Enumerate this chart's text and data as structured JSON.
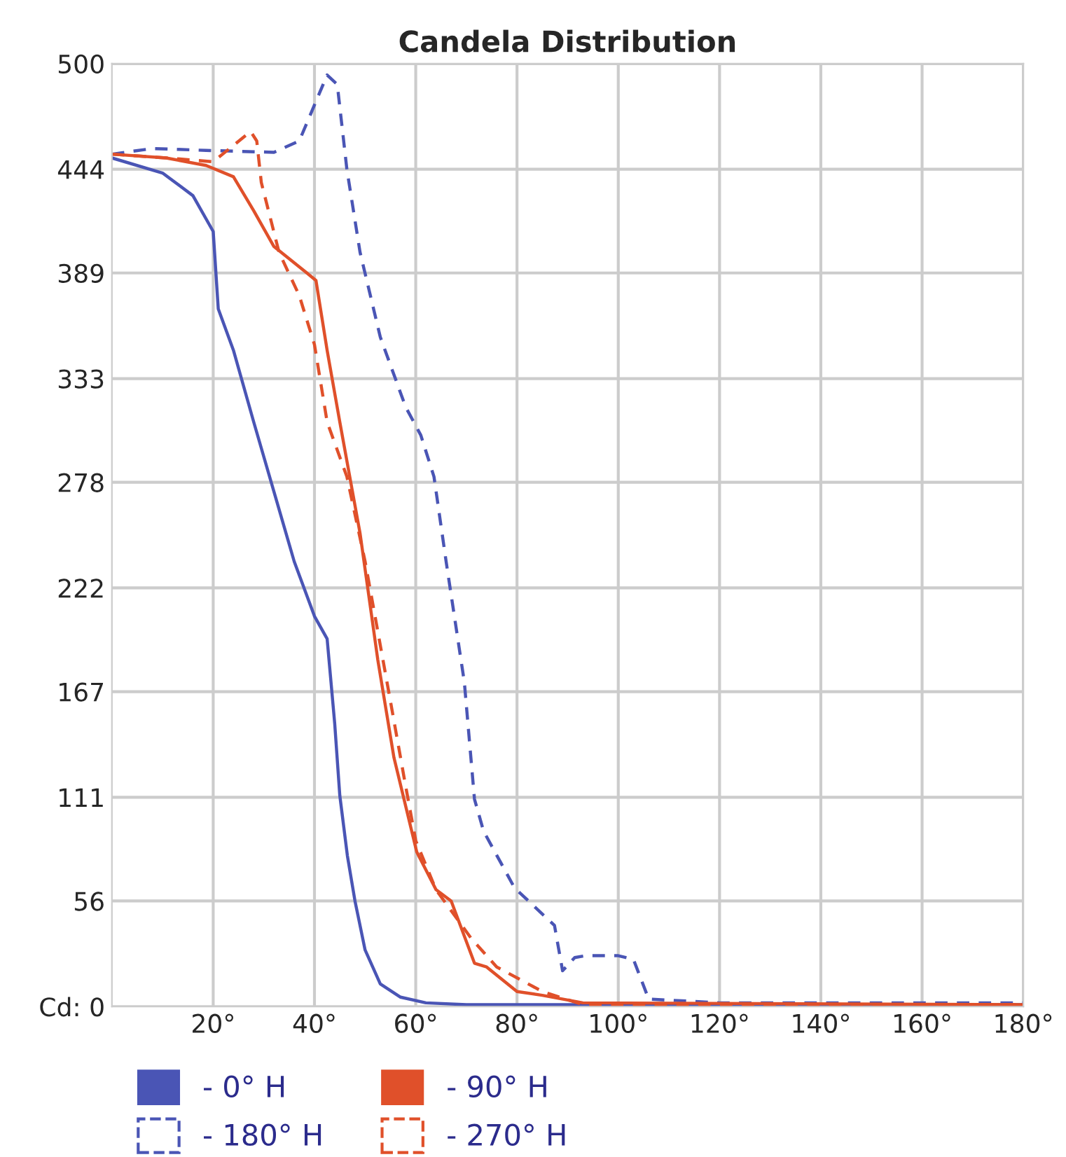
{
  "chart_data": {
    "type": "line",
    "title": "Candela Distribution",
    "xlim": [
      0,
      180
    ],
    "ylim": [
      0,
      500
    ],
    "xticks": [
      {
        "value": 20,
        "label": "20°"
      },
      {
        "value": 40,
        "label": "40°"
      },
      {
        "value": 60,
        "label": "60°"
      },
      {
        "value": 80,
        "label": "80°"
      },
      {
        "value": 100,
        "label": "100°"
      },
      {
        "value": 120,
        "label": "120°"
      },
      {
        "value": 140,
        "label": "140°"
      },
      {
        "value": 160,
        "label": "160°"
      },
      {
        "value": 180,
        "label": "180°"
      }
    ],
    "yticks": [
      {
        "value": 0,
        "label": "Cd: 0"
      },
      56,
      111,
      167,
      222,
      278,
      333,
      389,
      444,
      500
    ],
    "grid": true,
    "legend": "bottom",
    "marker": "none",
    "series": [
      {
        "name": "- 0° H",
        "color": "#4a55b5",
        "line_style": "solid",
        "x": [
          0,
          10,
          16,
          20,
          21,
          24,
          28,
          32,
          36,
          40,
          42.5,
          44,
          45,
          46.5,
          48,
          50,
          53,
          57,
          62,
          70,
          100,
          180
        ],
        "values": [
          450,
          442,
          430,
          411,
          370,
          348,
          310,
          273,
          236,
          207,
          195,
          150,
          112,
          80,
          56,
          30,
          12,
          5,
          2,
          1,
          1,
          1
        ]
      },
      {
        "name": "- 180° H",
        "color": "#4a55b5",
        "line_style": "dashed",
        "x": [
          0,
          8,
          18.6,
          32,
          37,
          42.5,
          44.5,
          46.4,
          49,
          53,
          58,
          61,
          63.6,
          66,
          69.6,
          71.6,
          73.4,
          79.5,
          87.4,
          89,
          91.4,
          93.5,
          100,
          103,
          106,
          120,
          180
        ],
        "values": [
          452,
          455,
          454,
          453,
          459,
          494,
          489,
          444,
          400,
          355,
          318,
          303,
          281,
          236,
          172,
          110,
          93,
          63,
          43,
          19,
          26,
          27,
          27,
          25,
          4,
          2,
          2
        ]
      },
      {
        "name": "- 90° H",
        "color": "#e0502a",
        "line_style": "solid",
        "x": [
          0,
          10.7,
          18.6,
          24,
          28,
          32,
          38.5,
          40.3,
          42.5,
          45,
          49,
          52.5,
          55.7,
          60.2,
          64,
          67,
          71.6,
          74,
          80,
          85,
          93,
          180
        ],
        "values": [
          452,
          450,
          446,
          440,
          422,
          403,
          389,
          385,
          348,
          310,
          251,
          184,
          132,
          82,
          62,
          56,
          23,
          21,
          8,
          6,
          2,
          1
        ]
      },
      {
        "name": "- 270° H",
        "color": "#e0502a",
        "line_style": "dashed",
        "x": [
          0,
          10.7,
          20,
          27.4,
          28.6,
          29.5,
          33,
          37,
          40,
          42.5,
          46.4,
          50,
          55,
          58,
          60,
          64,
          71,
          76,
          85,
          93,
          180
        ],
        "values": [
          452,
          450,
          448,
          464,
          459,
          437,
          400,
          377,
          351,
          310,
          281,
          236,
          162,
          117,
          88,
          62,
          36,
          21,
          8,
          1,
          1
        ]
      }
    ]
  }
}
